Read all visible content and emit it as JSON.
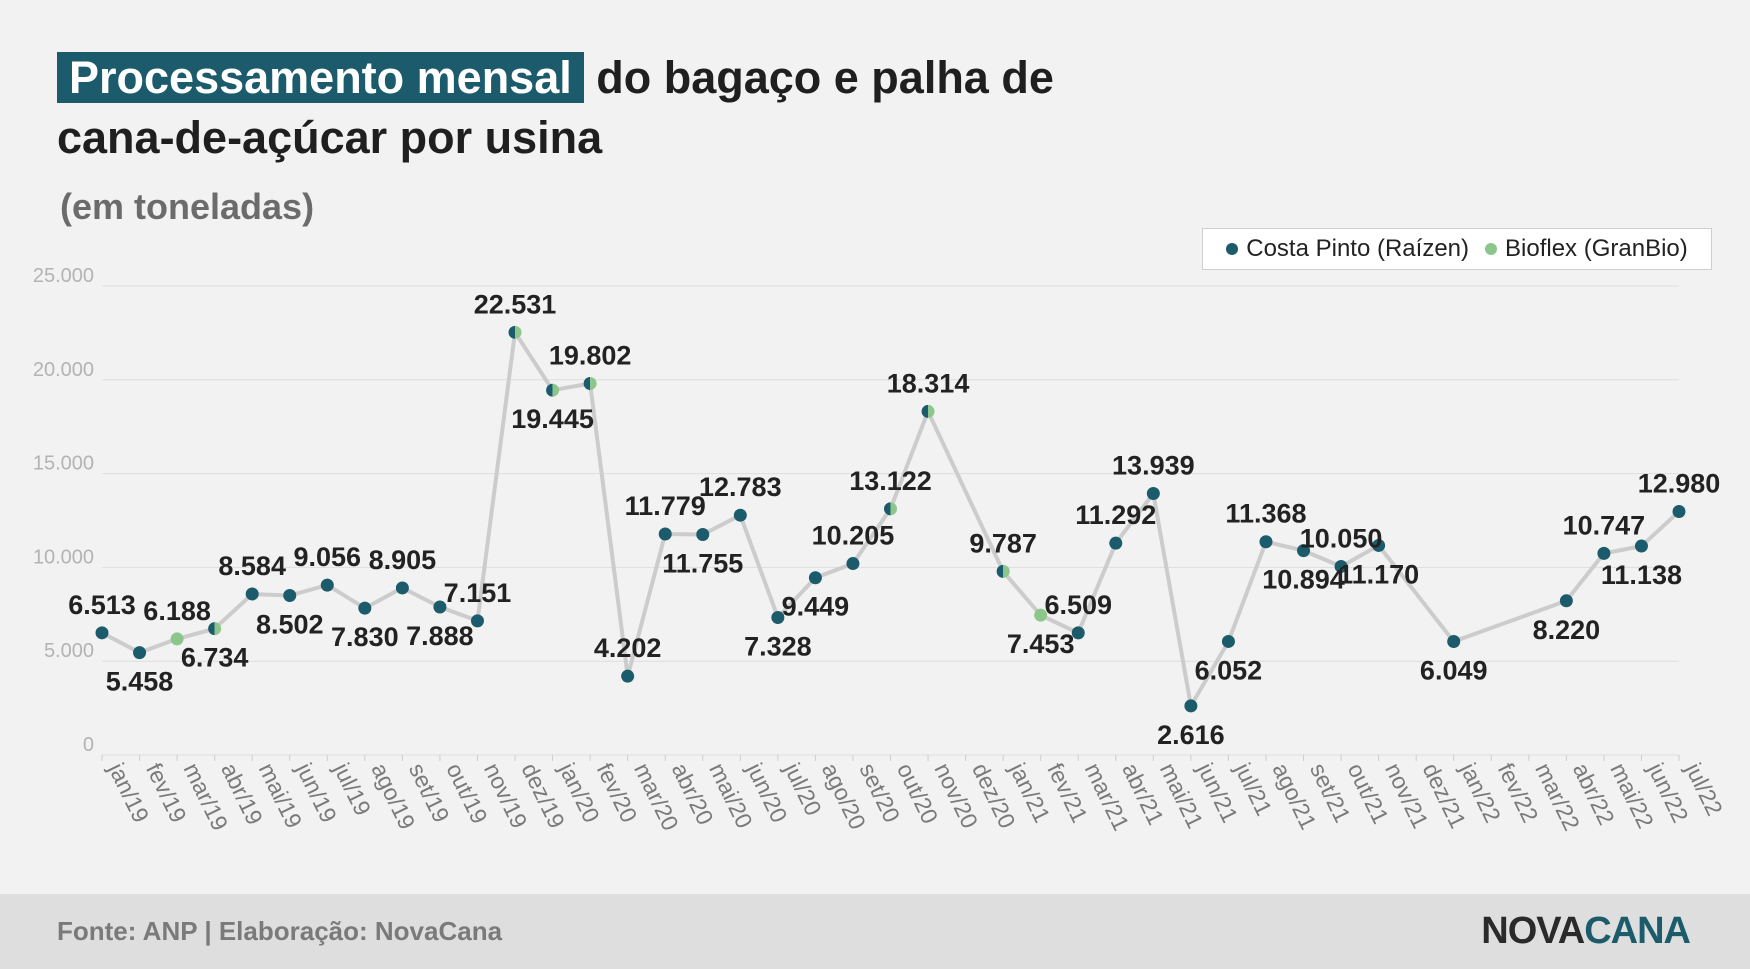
{
  "title": {
    "highlight": "Processamento mensal",
    "rest_line1": "do bagaço e palha de",
    "line2": "cana-de-açúcar por usina"
  },
  "subtitle": "(em toneladas)",
  "legend": {
    "items": [
      {
        "label": "Costa Pinto (Raízen)",
        "color": "#1b5b6b"
      },
      {
        "label": "Bioflex (GranBio)",
        "color": "#8dc68a"
      }
    ]
  },
  "footer": {
    "source": "Fonte: ANP | Elaboração: NovaCana",
    "logo_part1": "NOVA",
    "logo_part2": "CANA"
  },
  "colors": {
    "costa_pinto": "#1b5b6b",
    "bioflex": "#8dc68a",
    "line": "#cccccc",
    "grid": "#dddddd",
    "title_highlight": "#1b5b6b"
  },
  "chart_data": {
    "type": "line",
    "categories": [
      "jan/19",
      "fev/19",
      "mar/19",
      "abr/19",
      "mai/19",
      "jun/19",
      "jul/19",
      "ago/19",
      "set/19",
      "out/19",
      "nov/19",
      "dez/19",
      "jan/20",
      "fev/20",
      "mar/20",
      "abr/20",
      "mai/20",
      "jun/20",
      "jul/20",
      "ago/20",
      "set/20",
      "out/20",
      "nov/20",
      "dez/20",
      "jan/21",
      "fev/21",
      "mar/21",
      "abr/21",
      "mai/21",
      "jun/21",
      "jul/21",
      "ago/21",
      "set/21",
      "out/21",
      "nov/21",
      "dez/21",
      "jan/22",
      "fev/22",
      "mar/22",
      "abr/22",
      "mai/22",
      "jun/22",
      "jul/22"
    ],
    "yticks": [
      "0",
      "5.000",
      "10.000",
      "15.000",
      "20.000",
      "25.000"
    ],
    "ylim": [
      0,
      25000
    ],
    "grid": true,
    "legend_position": "top-right",
    "points": [
      {
        "x": "jan/19",
        "y": 6513,
        "label": "6.513",
        "plant": "costa",
        "pos": "above"
      },
      {
        "x": "fev/19",
        "y": 5458,
        "label": "5.458",
        "plant": "costa",
        "pos": "below"
      },
      {
        "x": "mar/19",
        "y": 6188,
        "label": "6.188",
        "plant": "bioflex",
        "pos": "above"
      },
      {
        "x": "abr/19",
        "y": 6734,
        "label": "6.734",
        "plant": "both",
        "pos": "below"
      },
      {
        "x": "mai/19",
        "y": 8584,
        "label": "8.584",
        "plant": "costa",
        "pos": "above"
      },
      {
        "x": "jun/19",
        "y": 8502,
        "label": "8.502",
        "plant": "costa",
        "pos": "below"
      },
      {
        "x": "jul/19",
        "y": 9056,
        "label": "9.056",
        "plant": "costa",
        "pos": "above"
      },
      {
        "x": "ago/19",
        "y": 7830,
        "label": "7.830",
        "plant": "costa",
        "pos": "below"
      },
      {
        "x": "set/19",
        "y": 8905,
        "label": "8.905",
        "plant": "costa",
        "pos": "above"
      },
      {
        "x": "out/19",
        "y": 7888,
        "label": "7.888",
        "plant": "costa",
        "pos": "below"
      },
      {
        "x": "nov/19",
        "y": 7151,
        "label": "7.151",
        "plant": "costa",
        "pos": "above"
      },
      {
        "x": "dez/19",
        "y": 22531,
        "label": "22.531",
        "plant": "both",
        "pos": "above"
      },
      {
        "x": "jan/20",
        "y": 19445,
        "label": "19.445",
        "plant": "both",
        "pos": "below"
      },
      {
        "x": "fev/20",
        "y": 19802,
        "label": "19.802",
        "plant": "both",
        "pos": "above"
      },
      {
        "x": "mar/20",
        "y": 4202,
        "label": "4.202",
        "plant": "costa",
        "pos": "above"
      },
      {
        "x": "abr/20",
        "y": 11779,
        "label": "11.779",
        "plant": "costa",
        "pos": "above"
      },
      {
        "x": "mai/20",
        "y": 11755,
        "label": "11.755",
        "plant": "costa",
        "pos": "below"
      },
      {
        "x": "jun/20",
        "y": 12783,
        "label": "12.783",
        "plant": "costa",
        "pos": "above"
      },
      {
        "x": "jul/20",
        "y": 7328,
        "label": "7.328",
        "plant": "costa",
        "pos": "below"
      },
      {
        "x": "ago/20",
        "y": 9449,
        "label": "9.449",
        "plant": "costa",
        "pos": "below"
      },
      {
        "x": "set/20",
        "y": 10205,
        "label": "10.205",
        "plant": "costa",
        "pos": "above"
      },
      {
        "x": "out/20",
        "y": 13122,
        "label": "13.122",
        "plant": "both",
        "pos": "above"
      },
      {
        "x": "nov/20",
        "y": 18314,
        "label": "18.314",
        "plant": "both",
        "pos": "above"
      },
      {
        "x": "jan/21",
        "y": 9787,
        "label": "9.787",
        "plant": "both",
        "pos": "above"
      },
      {
        "x": "fev/21",
        "y": 7453,
        "label": "7.453",
        "plant": "bioflex",
        "pos": "below"
      },
      {
        "x": "mar/21",
        "y": 6509,
        "label": "6.509",
        "plant": "costa",
        "pos": "above"
      },
      {
        "x": "abr/21",
        "y": 11292,
        "label": "11.292",
        "plant": "costa",
        "pos": "above"
      },
      {
        "x": "mai/21",
        "y": 13939,
        "label": "13.939",
        "plant": "costa",
        "pos": "above"
      },
      {
        "x": "jun/21",
        "y": 2616,
        "label": "2.616",
        "plant": "costa",
        "pos": "below"
      },
      {
        "x": "jul/21",
        "y": 6052,
        "label": "6.052",
        "plant": "costa",
        "pos": "below"
      },
      {
        "x": "ago/21",
        "y": 11368,
        "label": "11.368",
        "plant": "costa",
        "pos": "above"
      },
      {
        "x": "set/21",
        "y": 10894,
        "label": "10.894",
        "plant": "costa",
        "pos": "below"
      },
      {
        "x": "out/21",
        "y": 10050,
        "label": "10.050",
        "plant": "costa",
        "pos": "above"
      },
      {
        "x": "nov/21",
        "y": 11170,
        "label": "11.170",
        "plant": "costa",
        "pos": "below"
      },
      {
        "x": "jan/22",
        "y": 6049,
        "label": "6.049",
        "plant": "costa",
        "pos": "below"
      },
      {
        "x": "abr/22",
        "y": 8220,
        "label": "8.220",
        "plant": "costa",
        "pos": "below"
      },
      {
        "x": "mai/22",
        "y": 10747,
        "label": "10.747",
        "plant": "costa",
        "pos": "above"
      },
      {
        "x": "jun/22",
        "y": 11138,
        "label": "11.138",
        "plant": "costa",
        "pos": "below"
      },
      {
        "x": "jul/22",
        "y": 12980,
        "label": "12.980",
        "plant": "costa",
        "pos": "above"
      }
    ]
  }
}
